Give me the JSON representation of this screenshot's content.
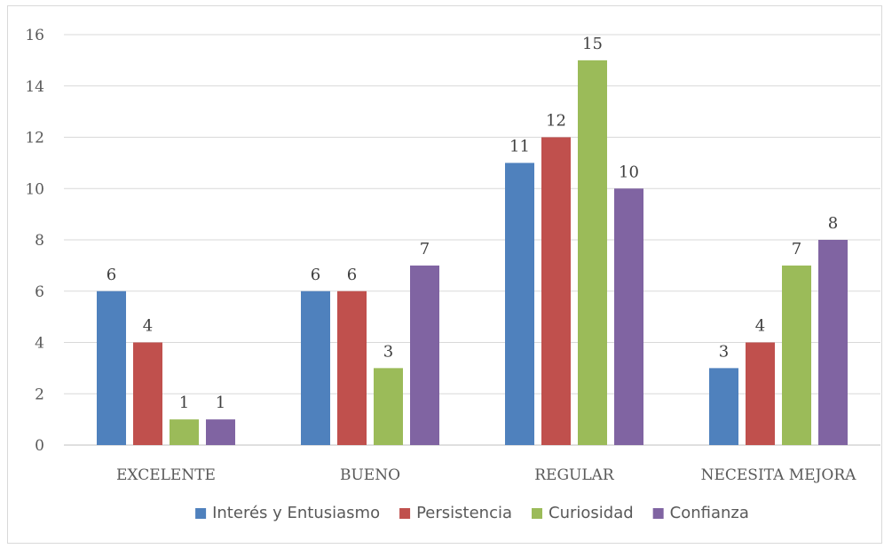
{
  "chart_data": {
    "type": "bar",
    "categories": [
      "EXCELENTE",
      "BUENO",
      "REGULAR",
      "NECESITA MEJORA"
    ],
    "series": [
      {
        "name": "Interés y Entusiasmo",
        "values": [
          6,
          6,
          11,
          3
        ],
        "color": "#4f81bd"
      },
      {
        "name": "Persistencia",
        "values": [
          4,
          6,
          12,
          4
        ],
        "color": "#c0504d"
      },
      {
        "name": "Curiosidad",
        "values": [
          1,
          3,
          15,
          7
        ],
        "color": "#9bbb59"
      },
      {
        "name": "Confianza",
        "values": [
          1,
          7,
          10,
          8
        ],
        "color": "#8064a2"
      }
    ],
    "ylim": [
      0,
      16
    ],
    "yticks": [
      0,
      2,
      4,
      6,
      8,
      10,
      12,
      14,
      16
    ],
    "grid": true,
    "legend_position": "bottom",
    "data_labels": true
  }
}
